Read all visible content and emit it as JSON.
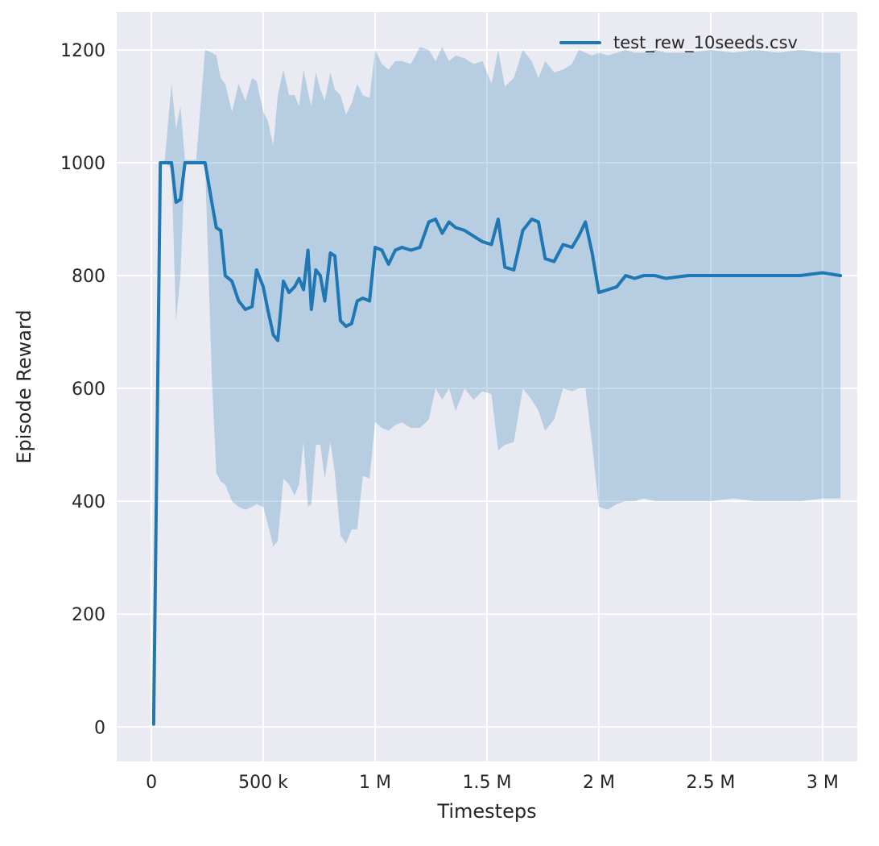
{
  "chart_data": {
    "type": "line",
    "title": "",
    "xlabel": "Timesteps",
    "ylabel": "Episode Reward",
    "grid": true,
    "legend": {
      "position": "upper right",
      "entries": [
        "test_rew_10seeds.csv"
      ]
    },
    "xlim": [
      -155000,
      3155000
    ],
    "ylim": [
      -61,
      1267
    ],
    "xticks": [
      0,
      500000,
      1000000,
      1500000,
      2000000,
      2500000,
      3000000
    ],
    "xticklabels": [
      "0",
      "500 k",
      "1 M",
      "1.5 M",
      "2 M",
      "2.5 M",
      "3 M"
    ],
    "yticks": [
      0,
      200,
      400,
      600,
      800,
      1000,
      1200
    ],
    "yticklabels": [
      "0",
      "200",
      "400",
      "600",
      "800",
      "1000",
      "1200"
    ],
    "colors": {
      "line": "#1f77b4",
      "band_opacity": 0.25,
      "plot_bg": "#eaeaf2",
      "grid": "#ffffff",
      "text": "#262626",
      "figure_bg": "#ffffff"
    },
    "series": [
      {
        "name": "test_rew_10seeds.csv",
        "x": [
          10000,
          40000,
          60000,
          90000,
          110000,
          130000,
          150000,
          200000,
          240000,
          270000,
          290000,
          310000,
          330000,
          360000,
          390000,
          420000,
          450000,
          470000,
          500000,
          520000,
          545000,
          565000,
          590000,
          615000,
          640000,
          660000,
          680000,
          700000,
          715000,
          735000,
          755000,
          775000,
          800000,
          820000,
          845000,
          870000,
          895000,
          920000,
          945000,
          975000,
          1000000,
          1030000,
          1060000,
          1090000,
          1120000,
          1160000,
          1200000,
          1240000,
          1270000,
          1300000,
          1330000,
          1360000,
          1400000,
          1440000,
          1480000,
          1520000,
          1550000,
          1580000,
          1620000,
          1660000,
          1700000,
          1730000,
          1760000,
          1800000,
          1840000,
          1880000,
          1910000,
          1940000,
          1970000,
          2000000,
          2040000,
          2080000,
          2120000,
          2160000,
          2200000,
          2250000,
          2300000,
          2400000,
          2500000,
          2600000,
          2700000,
          2800000,
          2900000,
          3000000,
          3080000
        ],
        "mean": [
          5,
          1000,
          1000,
          1000,
          930,
          935,
          1000,
          1000,
          1000,
          930,
          885,
          880,
          800,
          790,
          755,
          740,
          745,
          810,
          780,
          740,
          695,
          685,
          790,
          770,
          780,
          795,
          775,
          845,
          740,
          810,
          800,
          755,
          840,
          835,
          720,
          710,
          715,
          755,
          760,
          755,
          850,
          845,
          820,
          845,
          850,
          845,
          850,
          895,
          900,
          875,
          895,
          885,
          880,
          870,
          860,
          855,
          900,
          815,
          810,
          880,
          900,
          895,
          830,
          825,
          855,
          850,
          870,
          895,
          840,
          770,
          775,
          780,
          800,
          795,
          800,
          800,
          795,
          800,
          800,
          800,
          800,
          800,
          800,
          805,
          800
        ],
        "lower": [
          5,
          1000,
          1000,
          990,
          720,
          800,
          1000,
          1000,
          1000,
          620,
          450,
          435,
          430,
          400,
          390,
          385,
          390,
          395,
          390,
          360,
          320,
          330,
          440,
          430,
          410,
          430,
          505,
          390,
          395,
          500,
          500,
          440,
          505,
          450,
          340,
          325,
          350,
          350,
          445,
          440,
          540,
          530,
          525,
          535,
          540,
          530,
          530,
          545,
          600,
          580,
          600,
          560,
          600,
          580,
          595,
          590,
          490,
          500,
          505,
          600,
          580,
          560,
          525,
          545,
          600,
          595,
          600,
          600,
          500,
          390,
          385,
          395,
          400,
          400,
          405,
          400,
          400,
          400,
          400,
          405,
          400,
          400,
          400,
          405,
          405
        ],
        "upper": [
          5,
          1000,
          1005,
          1140,
          1060,
          1100,
          1005,
          1005,
          1200,
          1195,
          1190,
          1150,
          1140,
          1090,
          1140,
          1110,
          1150,
          1145,
          1090,
          1075,
          1030,
          1120,
          1165,
          1120,
          1120,
          1100,
          1165,
          1125,
          1100,
          1160,
          1130,
          1110,
          1160,
          1130,
          1120,
          1085,
          1105,
          1140,
          1120,
          1115,
          1200,
          1175,
          1165,
          1180,
          1180,
          1175,
          1205,
          1200,
          1180,
          1205,
          1180,
          1190,
          1185,
          1175,
          1180,
          1140,
          1200,
          1135,
          1150,
          1200,
          1180,
          1150,
          1180,
          1160,
          1165,
          1175,
          1200,
          1195,
          1190,
          1195,
          1190,
          1195,
          1200,
          1195,
          1195,
          1200,
          1195,
          1195,
          1200,
          1195,
          1200,
          1195,
          1200,
          1195,
          1195
        ]
      }
    ]
  }
}
